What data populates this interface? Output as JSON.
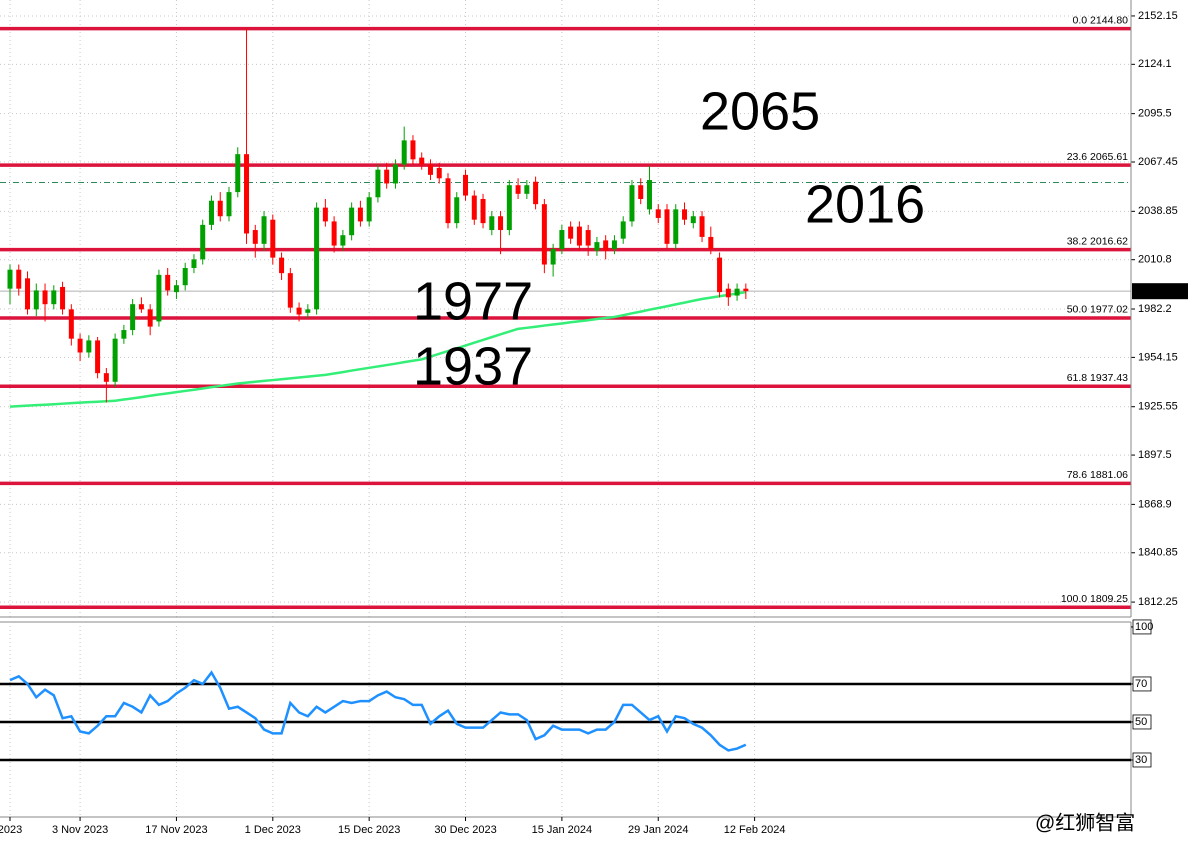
{
  "chart_data": [
    {
      "type": "candlestick",
      "ylim": [
        1803.6,
        2161.4
      ],
      "yticks": [
        2152.15,
        2124.1,
        2095.5,
        2067.45,
        2038.85,
        2010.8,
        1982.2,
        1954.15,
        1925.55,
        1897.5,
        1868.9,
        1840.85,
        1812.25
      ],
      "grid": true,
      "up_color": "#00a000",
      "down_color": "#ff0000",
      "candles": [
        [
          1994,
          2008,
          1985,
          2005
        ],
        [
          2005,
          2008,
          1990,
          1994
        ],
        [
          2000,
          2004,
          1979,
          1982
        ],
        [
          1982,
          1997,
          1978,
          1993
        ],
        [
          1993,
          1997,
          1975,
          1985
        ],
        [
          1985,
          1996,
          1982,
          1993
        ],
        [
          1995,
          1998,
          1979,
          1982
        ],
        [
          1982,
          1985,
          1961,
          1965
        ],
        [
          1965,
          1968,
          1952,
          1957
        ],
        [
          1957,
          1967,
          1954,
          1964
        ],
        [
          1964,
          1966,
          1942,
          1945
        ],
        [
          1945,
          1948,
          1928,
          1940
        ],
        [
          1940,
          1968,
          1937,
          1965
        ],
        [
          1965,
          1973,
          1962,
          1970
        ],
        [
          1970,
          1988,
          1967,
          1985
        ],
        [
          1985,
          1989,
          1980,
          1982
        ],
        [
          1982,
          1985,
          1967,
          1972
        ],
        [
          1975,
          2005,
          1972,
          2002
        ],
        [
          2002,
          2006,
          1990,
          1993
        ],
        [
          1992,
          1999,
          1988,
          1996
        ],
        [
          1996,
          2009,
          1993,
          2006
        ],
        [
          2006,
          2014,
          2003,
          2011
        ],
        [
          2011,
          2034,
          2008,
          2031
        ],
        [
          2031,
          2048,
          2028,
          2045
        ],
        [
          2045,
          2050,
          2033,
          2036
        ],
        [
          2036,
          2053,
          2033,
          2050
        ],
        [
          2050,
          2076,
          2047,
          2072
        ],
        [
          2072,
          2144.8,
          2020,
          2026
        ],
        [
          2028,
          2031,
          2012,
          2020
        ],
        [
          2020,
          2039,
          2016,
          2036
        ],
        [
          2034,
          2037,
          2008,
          2012
        ],
        [
          2012,
          2015,
          1999,
          2003
        ],
        [
          2003,
          2006,
          1980,
          1983
        ],
        [
          1983,
          1986,
          1975,
          1979
        ],
        [
          1980,
          1985,
          1977,
          1982
        ],
        [
          1982,
          2044,
          1979,
          2041
        ],
        [
          2041,
          2046,
          2030,
          2033
        ],
        [
          2033,
          2036,
          2015,
          2019
        ],
        [
          2019,
          2028,
          2016,
          2025
        ],
        [
          2025,
          2044,
          2022,
          2041
        ],
        [
          2041,
          2045,
          2030,
          2033
        ],
        [
          2033,
          2050,
          2030,
          2047
        ],
        [
          2047,
          2066,
          2044,
          2063
        ],
        [
          2063,
          2067,
          2052,
          2055
        ],
        [
          2055,
          2069,
          2052,
          2066
        ],
        [
          2066,
          2088,
          2063,
          2080
        ],
        [
          2080,
          2083,
          2066,
          2069
        ],
        [
          2070,
          2073,
          2063,
          2066
        ],
        [
          2066,
          2069,
          2057,
          2060
        ],
        [
          2064,
          2067,
          2055,
          2058
        ],
        [
          2058,
          2061,
          2029,
          2032
        ],
        [
          2032,
          2050,
          2029,
          2047
        ],
        [
          2060,
          2063,
          2045,
          2048
        ],
        [
          2048,
          2051,
          2031,
          2034
        ],
        [
          2046,
          2049,
          2029,
          2032
        ],
        [
          2028,
          2039,
          2025,
          2036
        ],
        [
          2036,
          2039,
          2014,
          2028
        ],
        [
          2028,
          2057,
          2025,
          2054
        ],
        [
          2054,
          2058,
          2046,
          2049
        ],
        [
          2049,
          2057,
          2046,
          2054
        ],
        [
          2056,
          2059,
          2040,
          2043
        ],
        [
          2043,
          2046,
          2003,
          2008
        ],
        [
          2008,
          2020,
          2001,
          2017
        ],
        [
          2017,
          2031,
          2014,
          2028
        ],
        [
          2030,
          2033,
          2020,
          2023
        ],
        [
          2030,
          2033,
          2016,
          2019
        ],
        [
          2028,
          2031,
          2013,
          2019
        ],
        [
          2016,
          2024,
          2013,
          2021
        ],
        [
          2022,
          2025,
          2011,
          2016
        ],
        [
          2017,
          2025,
          2014,
          2022
        ],
        [
          2023,
          2036,
          2020,
          2033
        ],
        [
          2033,
          2057,
          2030,
          2054
        ],
        [
          2054,
          2058,
          2043,
          2046
        ],
        [
          2040,
          2065,
          2037,
          2057
        ],
        [
          2040,
          2043,
          2032,
          2035
        ],
        [
          2040,
          2043,
          2017,
          2020
        ],
        [
          2020,
          2043,
          2017,
          2040
        ],
        [
          2040,
          2044,
          2031,
          2034
        ],
        [
          2032,
          2039,
          2029,
          2036
        ],
        [
          2036,
          2039,
          2021,
          2024
        ],
        [
          2024,
          2030,
          2014,
          2017
        ],
        [
          2012,
          2015,
          1989,
          1992
        ],
        [
          1994,
          1997,
          1984,
          1989
        ],
        [
          1990,
          1997,
          1987,
          1994
        ],
        [
          1994,
          1997,
          1988,
          1992.54
        ]
      ],
      "ma": [
        1925.6,
        1925.9,
        1926.2,
        1926.5,
        1926.7,
        1927.0,
        1927.3,
        1927.6,
        1927.9,
        1928.2,
        1928.4,
        1928.7,
        1929.0,
        1929.7,
        1930.4,
        1931.1,
        1931.9,
        1932.6,
        1933.3,
        1934.0,
        1934.7,
        1935.4,
        1936.1,
        1936.9,
        1937.6,
        1938.3,
        1939.0,
        1939.5,
        1940.0,
        1940.5,
        1941.0,
        1941.5,
        1942.0,
        1942.5,
        1943.0,
        1943.5,
        1944.0,
        1944.8,
        1945.6,
        1946.5,
        1947.3,
        1948.1,
        1948.9,
        1949.7,
        1950.5,
        1951.4,
        1952.2,
        1953.0,
        1954.6,
        1956.2,
        1957.8,
        1959.4,
        1961.0,
        1962.7,
        1964.3,
        1965.9,
        1967.5,
        1969.1,
        1970.7,
        1971.3,
        1971.9,
        1972.6,
        1973.2,
        1973.8,
        1974.5,
        1975.1,
        1975.7,
        1976.4,
        1977.0,
        1977.6,
        1978.6,
        1979.7,
        1980.7,
        1981.8,
        1982.8,
        1983.8,
        1984.9,
        1985.9,
        1987.0,
        1988.0,
        1988.8,
        1989.6,
        1990.4,
        1991.2,
        1992.0
      ],
      "ma_color": "#33ee77",
      "ref_line": 2055.6,
      "last_price": 1992.54,
      "level_color": "#dc143c",
      "levels": [
        {
          "value": 2144.8,
          "label": "0.0 2144.80"
        },
        {
          "value": 2065.61,
          "label": "23.6 2065.61"
        },
        {
          "value": 2016.62,
          "label": "38.2 2016.62"
        },
        {
          "value": 1977.02,
          "label": "50.0 1977.02"
        },
        {
          "value": 1937.43,
          "label": "61.8 1937.43"
        },
        {
          "value": 1881.06,
          "label": "78.6 1881.06"
        },
        {
          "value": 1809.25,
          "label": "100.0 1809.25"
        }
      ],
      "annotations": [
        "2065",
        "2016",
        "1977",
        "1937"
      ]
    },
    {
      "type": "line",
      "ylim": [
        0,
        102.6
      ],
      "yticks": [
        100,
        70,
        50,
        30
      ],
      "levels": [
        70,
        50,
        30
      ],
      "color": "#1e90ff",
      "values": [
        72,
        74,
        70,
        63,
        67,
        64,
        52,
        53,
        45,
        44,
        48,
        53,
        53,
        60,
        58,
        55,
        64,
        59,
        61,
        65,
        68,
        72,
        70,
        76,
        68,
        57,
        58,
        55,
        52,
        46,
        44,
        44,
        60,
        55,
        53,
        58,
        55,
        58,
        61,
        60,
        61,
        61,
        64,
        66,
        63,
        62,
        59,
        59,
        49,
        53,
        56,
        49,
        47,
        47,
        47,
        51,
        55,
        54,
        54,
        51,
        41,
        43,
        48,
        46,
        46,
        46,
        44,
        46,
        46,
        50,
        59,
        59,
        55,
        51,
        53,
        45,
        53,
        52,
        49,
        47,
        43,
        38,
        35,
        36,
        38
      ],
      "xticks": [
        {
          "value": 0,
          "label": "2023"
        },
        {
          "value": 8,
          "label": "3 Nov 2023"
        },
        {
          "value": 19,
          "label": "17 Nov 2023"
        },
        {
          "value": 30,
          "label": "1 Dec 2023"
        },
        {
          "value": 41,
          "label": "15 Dec 2023"
        },
        {
          "value": 52,
          "label": "30 Dec 2023"
        },
        {
          "value": 63,
          "label": "15 Jan 2024"
        },
        {
          "value": 74,
          "label": "29 Jan 2024"
        },
        {
          "value": 85,
          "label": "12 Feb 2024"
        }
      ],
      "watermark": "@红狮智富"
    }
  ]
}
